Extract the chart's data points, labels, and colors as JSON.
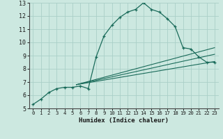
{
  "xlabel": "Humidex (Indice chaleur)",
  "background_color": "#cce8e0",
  "line_color": "#1a6b5a",
  "grid_color": "#aacfc8",
  "xlim": [
    -0.5,
    23.5
  ],
  "ylim": [
    5,
    13
  ],
  "xticks": [
    0,
    1,
    2,
    3,
    4,
    5,
    6,
    7,
    8,
    9,
    10,
    11,
    12,
    13,
    14,
    15,
    16,
    17,
    18,
    19,
    20,
    21,
    22,
    23
  ],
  "yticks": [
    5,
    6,
    7,
    8,
    9,
    10,
    11,
    12,
    13
  ],
  "main_line": {
    "x": [
      0,
      1,
      2,
      3,
      4,
      5,
      6,
      7,
      8,
      9,
      10,
      11,
      12,
      13,
      14,
      15,
      16,
      17,
      18,
      19,
      20,
      21,
      22,
      23
    ],
    "y": [
      5.3,
      5.7,
      6.2,
      6.5,
      6.6,
      6.6,
      6.7,
      6.5,
      8.9,
      10.5,
      11.3,
      11.9,
      12.3,
      12.5,
      13.0,
      12.5,
      12.3,
      11.8,
      11.2,
      9.6,
      9.5,
      8.9,
      8.5,
      8.5
    ]
  },
  "straight_lines": [
    {
      "x": [
        5.5,
        23
      ],
      "y": [
        6.8,
        9.6
      ]
    },
    {
      "x": [
        5.5,
        23
      ],
      "y": [
        6.8,
        9.1
      ]
    },
    {
      "x": [
        5.5,
        23
      ],
      "y": [
        6.8,
        8.55
      ]
    }
  ]
}
